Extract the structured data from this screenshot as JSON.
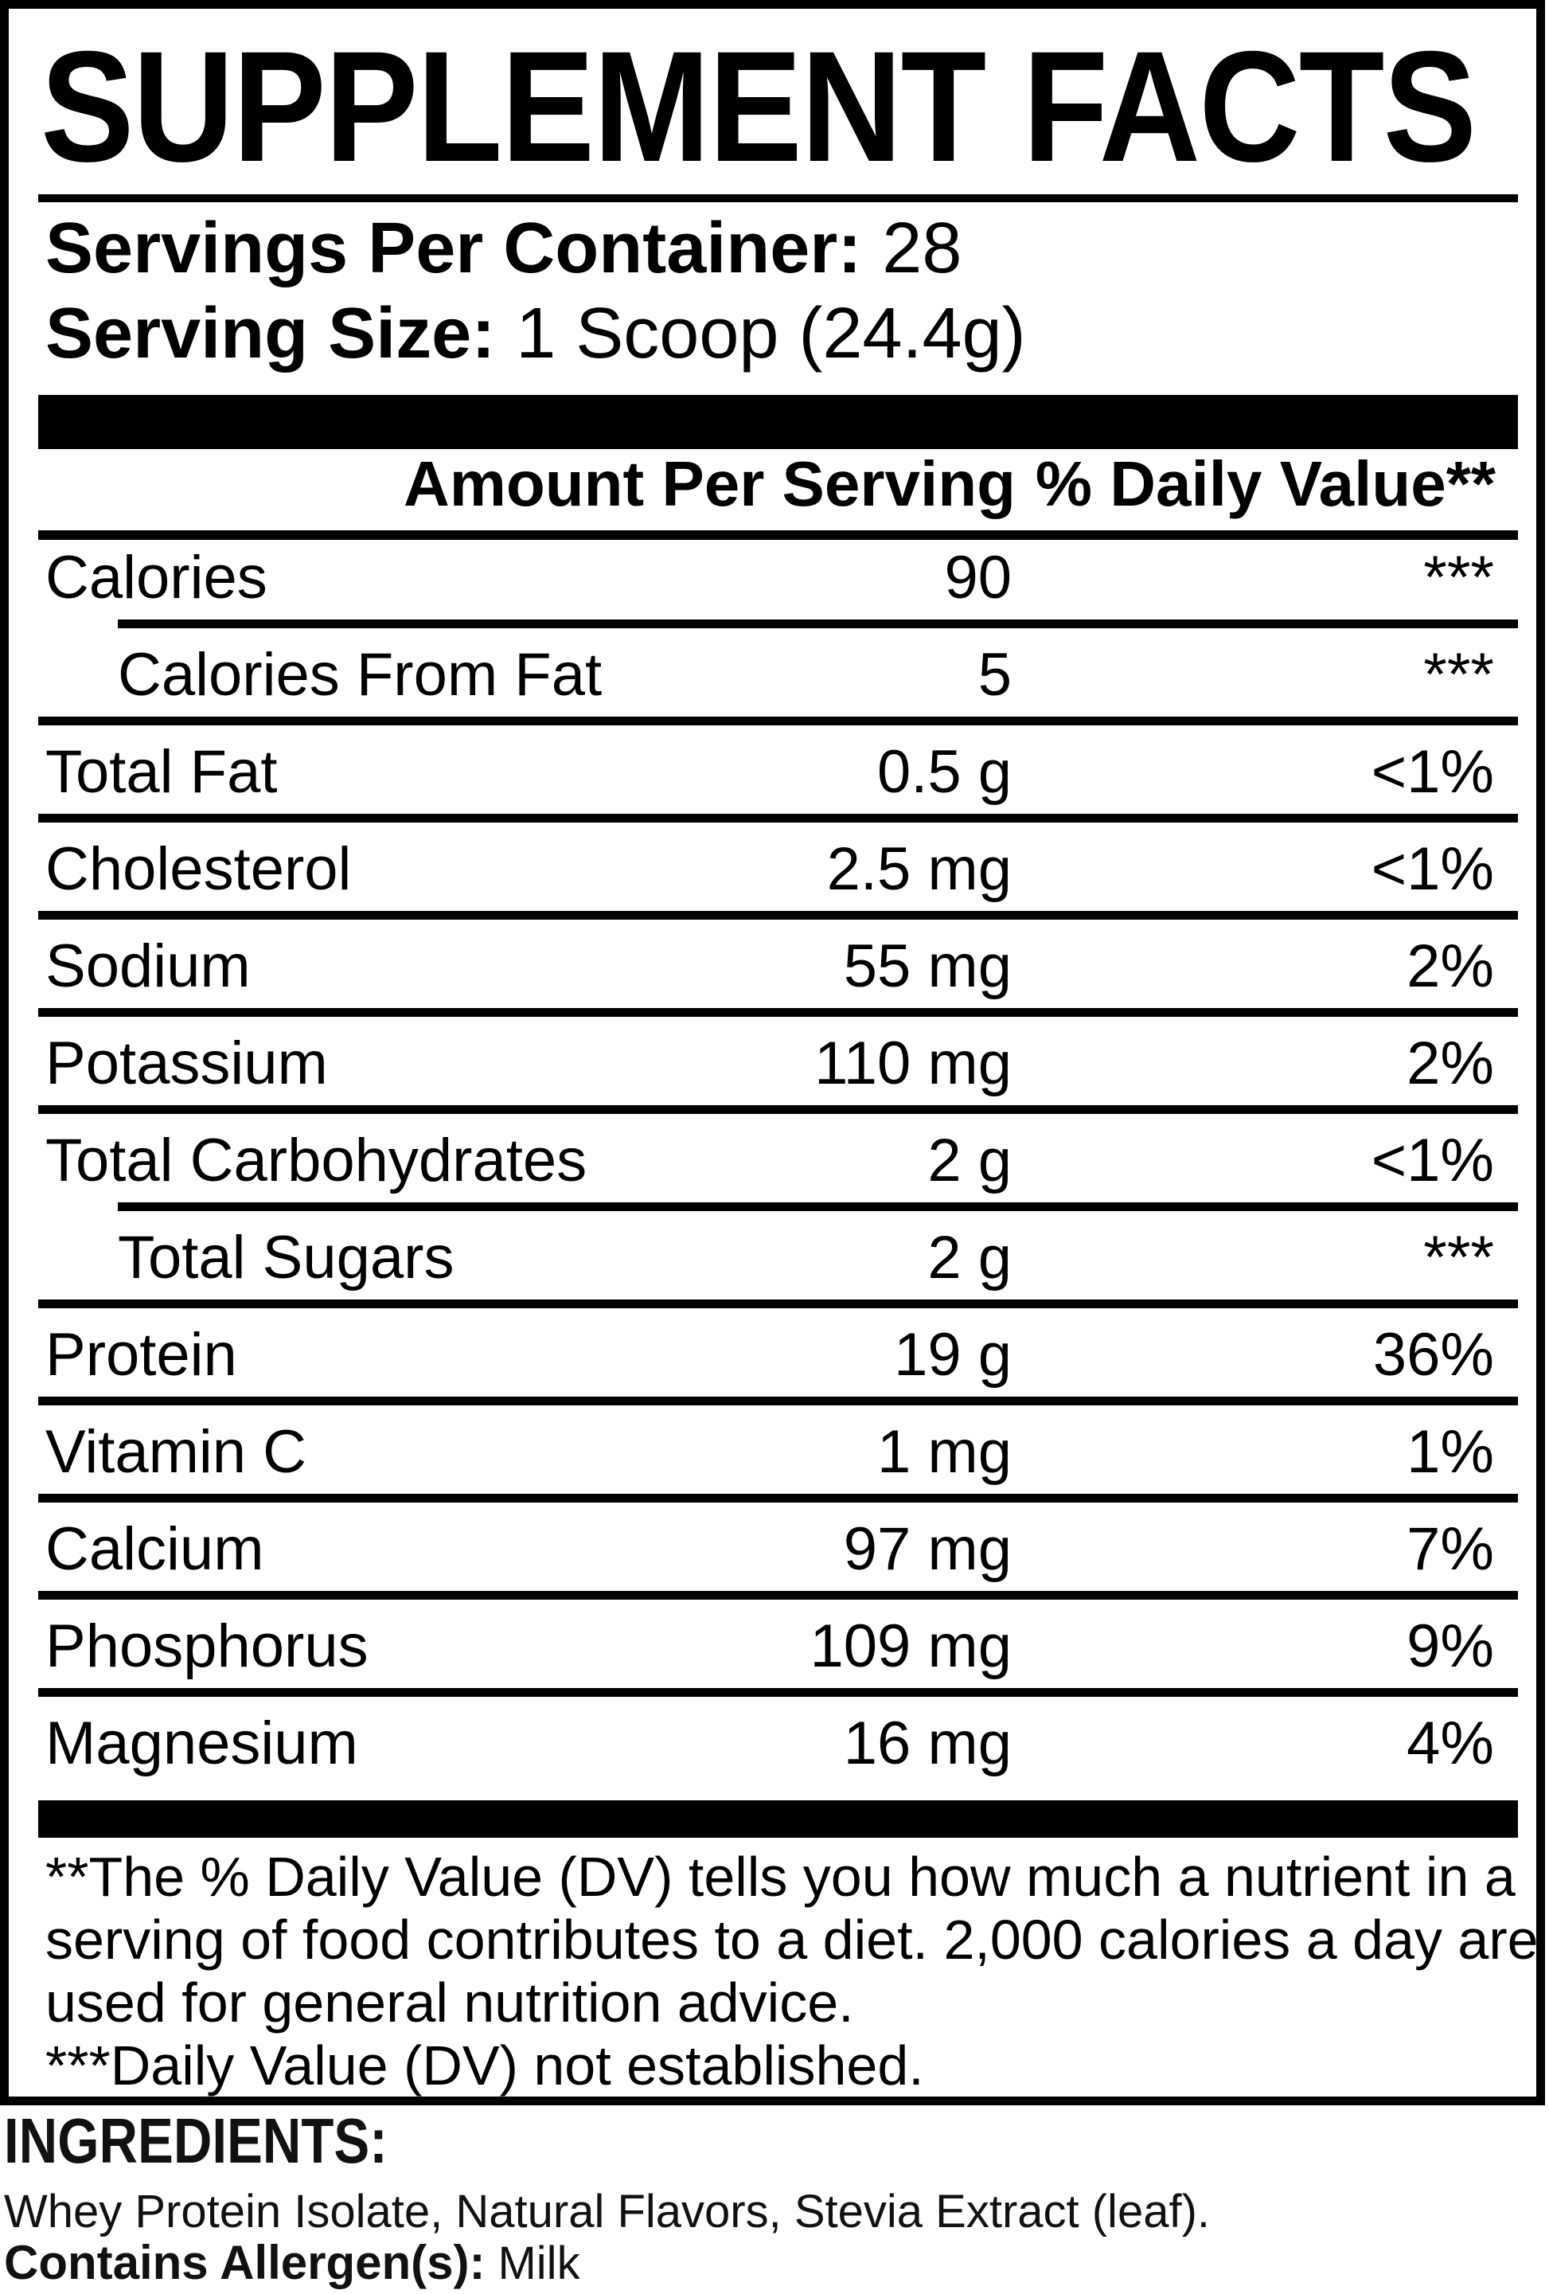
{
  "title": "SUPPLEMENT FACTS",
  "serving": {
    "servings_label": "Servings Per Container:",
    "servings_value": "28",
    "size_label": "Serving Size:",
    "size_value": "1 Scoop (24.4g)"
  },
  "table": {
    "amount_header": "Amount Per Serving",
    "dv_header": "% Daily Value**",
    "rows": [
      {
        "name": "Calories",
        "amount": "90",
        "dv": "***"
      },
      {
        "name": "Calories From Fat",
        "amount": "5",
        "dv": "***"
      },
      {
        "name": "Total Fat",
        "amount": "0.5 g",
        "dv": "<1%"
      },
      {
        "name": "Cholesterol",
        "amount": "2.5 mg",
        "dv": "<1%"
      },
      {
        "name": "Sodium",
        "amount": "55 mg",
        "dv": "2%"
      },
      {
        "name": "Potassium",
        "amount": "110 mg",
        "dv": "2%"
      },
      {
        "name": "Total Carbohydrates",
        "amount": "2 g",
        "dv": "<1%"
      },
      {
        "name": "Total Sugars",
        "amount": "2 g",
        "dv": "***"
      },
      {
        "name": "Protein",
        "amount": "19 g",
        "dv": "36%"
      },
      {
        "name": "Vitamin C",
        "amount": "1 mg",
        "dv": "1%"
      },
      {
        "name": "Calcium",
        "amount": "97 mg",
        "dv": "7%"
      },
      {
        "name": "Phosphorus",
        "amount": "109 mg",
        "dv": "9%"
      },
      {
        "name": "Magnesium",
        "amount": "16 mg",
        "dv": "4%"
      }
    ]
  },
  "footnote": {
    "lines": [
      "**The % Daily Value (DV) tells you how much a nutrient in a",
      "serving of food contributes to a diet. 2,000 calories a day are",
      "used for general nutrition advice.",
      "***Daily Value (DV) not established."
    ]
  },
  "ingredients": {
    "heading": "INGREDIENTS:",
    "list": "Whey Protein Isolate, Natural Flavors, Stevia Extract (leaf).",
    "allergen_label": "Contains Allergen(s):",
    "allergen_value": "Milk"
  },
  "colors": {
    "ink": "#000000",
    "paper": "#ffffff"
  }
}
